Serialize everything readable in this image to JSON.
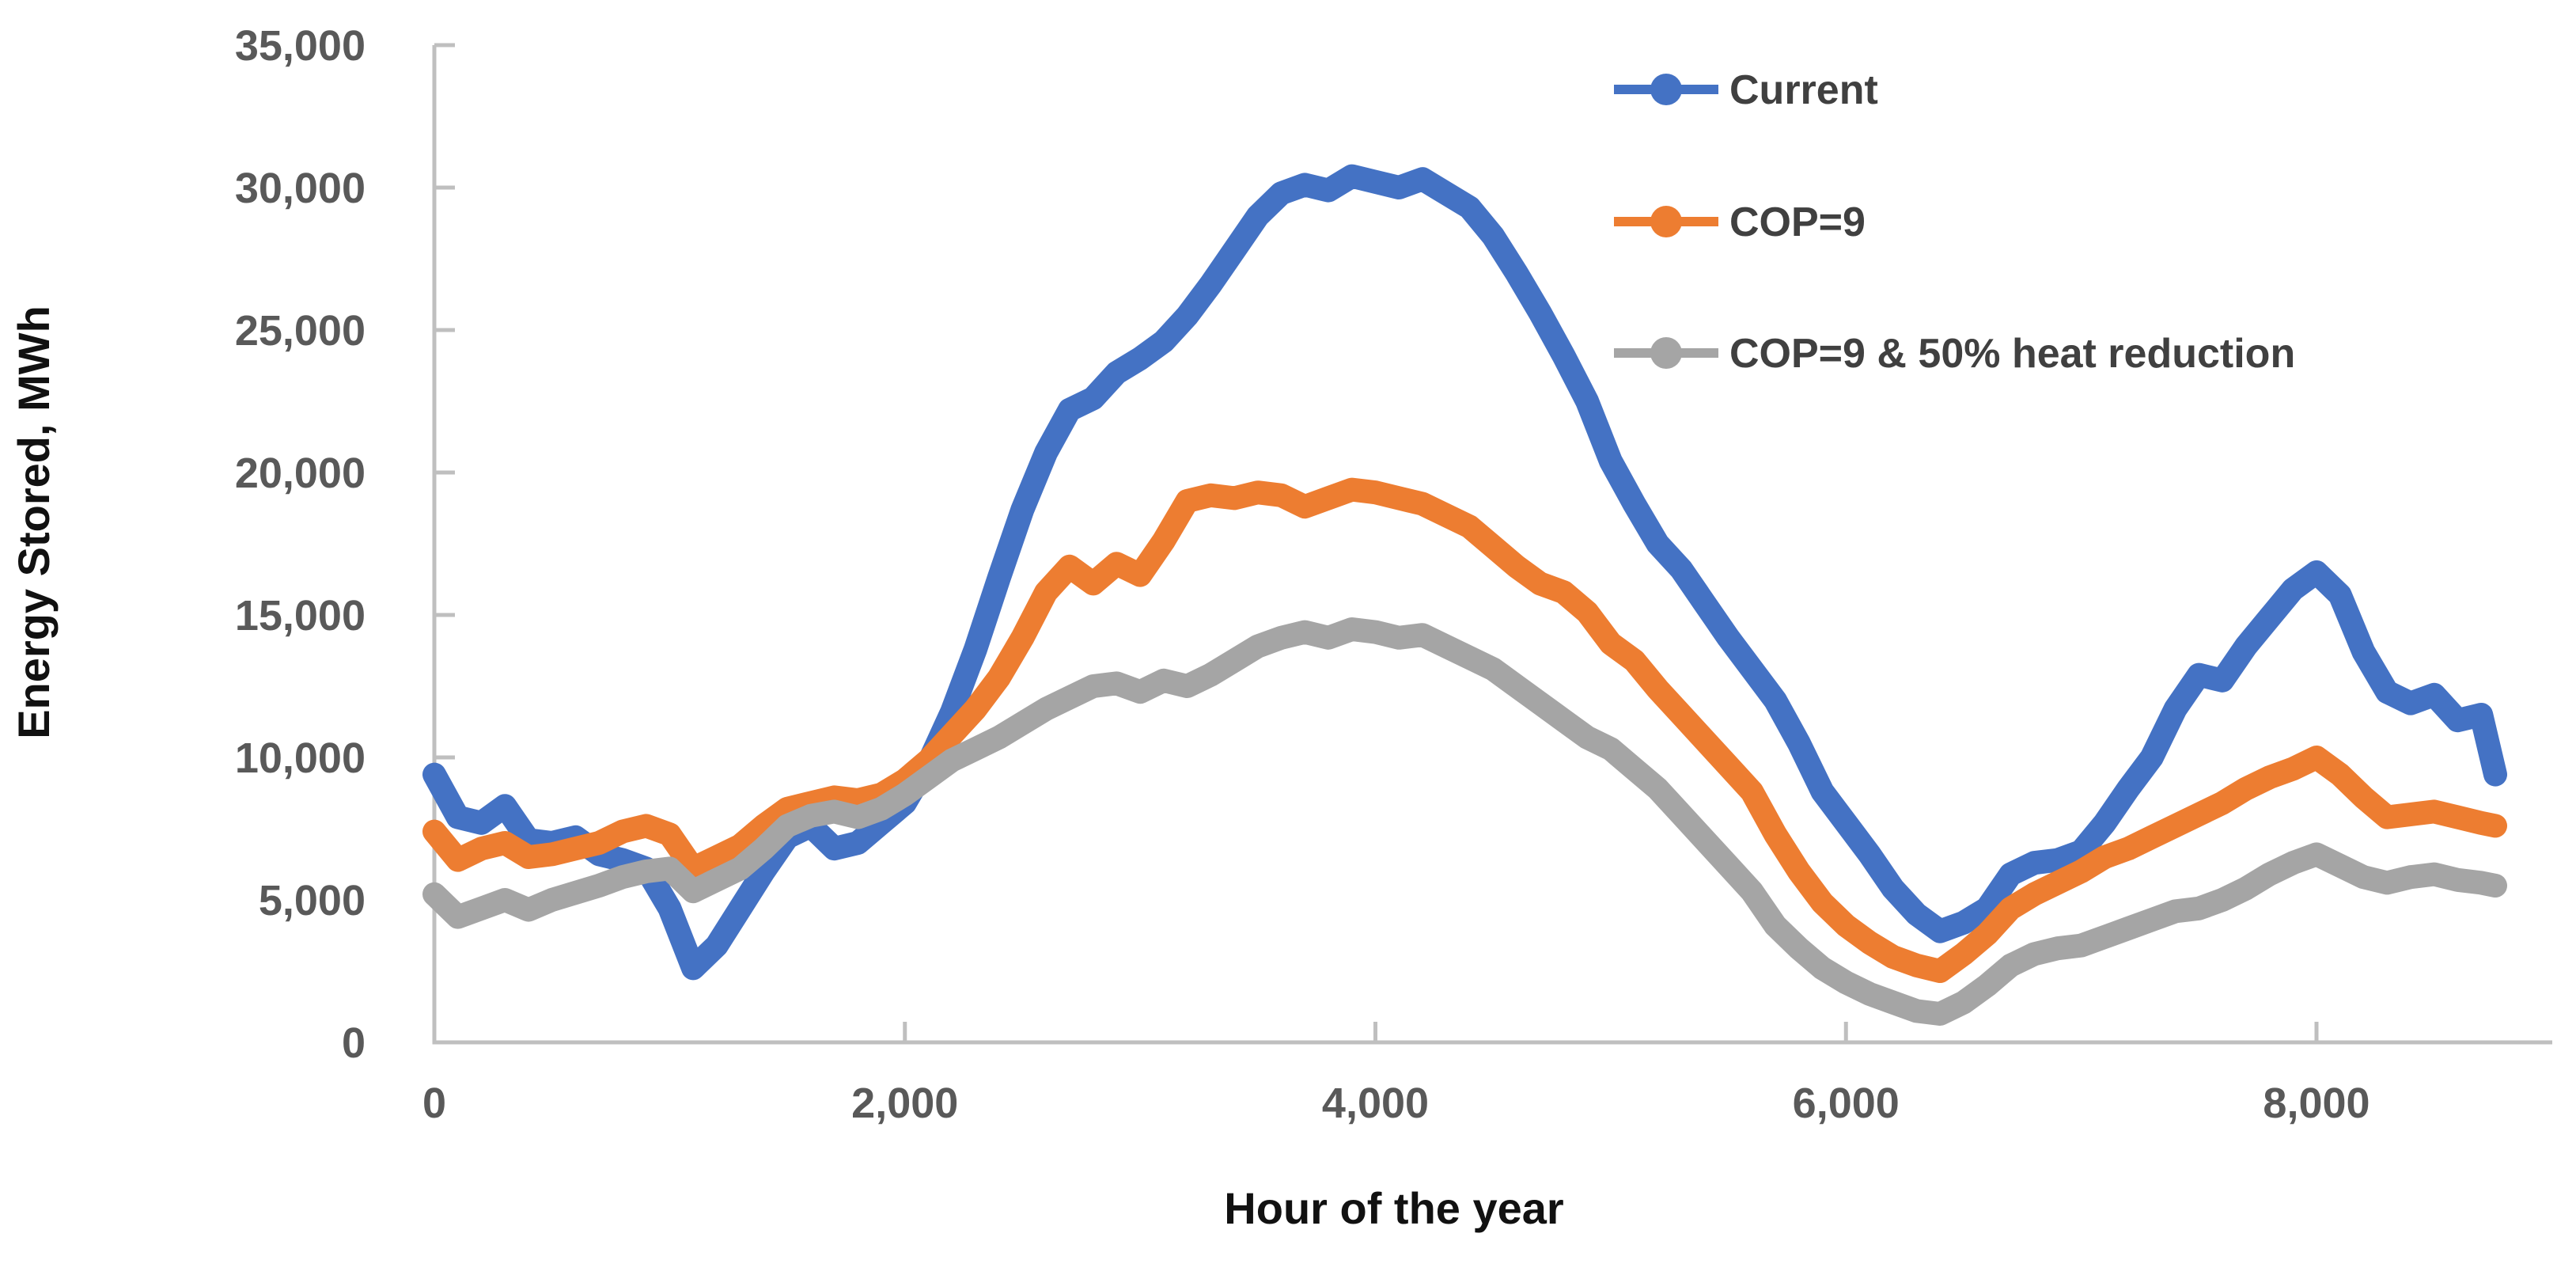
{
  "chart_data": {
    "type": "line",
    "title": "",
    "xlabel": "Hour of the year",
    "ylabel": "Energy Stored, MWh",
    "xlim": [
      0,
      9000
    ],
    "ylim": [
      0,
      35000
    ],
    "x_ticks": [
      0,
      2000,
      4000,
      6000,
      8000
    ],
    "y_ticks": [
      0,
      5000,
      10000,
      15000,
      20000,
      25000,
      30000,
      35000
    ],
    "grid": "off",
    "legend_position": "top-right",
    "axis_color": "#BFBFBF",
    "tick_label_color": "#595959",
    "x": [
      0,
      100,
      200,
      300,
      400,
      500,
      600,
      700,
      800,
      900,
      1000,
      1100,
      1200,
      1300,
      1400,
      1500,
      1600,
      1700,
      1800,
      1900,
      2000,
      2100,
      2200,
      2300,
      2400,
      2500,
      2600,
      2700,
      2800,
      2900,
      3000,
      3100,
      3200,
      3300,
      3400,
      3500,
      3600,
      3700,
      3800,
      3900,
      4000,
      4100,
      4200,
      4300,
      4400,
      4500,
      4600,
      4700,
      4800,
      4900,
      5000,
      5100,
      5200,
      5300,
      5400,
      5500,
      5600,
      5700,
      5800,
      5900,
      6000,
      6100,
      6200,
      6300,
      6400,
      6500,
      6600,
      6700,
      6800,
      6900,
      7000,
      7100,
      7200,
      7300,
      7400,
      7500,
      7600,
      7700,
      7800,
      7900,
      8000,
      8100,
      8200,
      8300,
      8400,
      8500,
      8600,
      8700,
      8760
    ],
    "series": [
      {
        "name": "Current",
        "color": "#4472C4",
        "values": [
          9400,
          7900,
          7700,
          8300,
          7100,
          7000,
          7200,
          6600,
          6400,
          6100,
          4700,
          2600,
          3400,
          4700,
          6000,
          7200,
          7600,
          6800,
          7000,
          7700,
          8400,
          9800,
          11600,
          13800,
          16300,
          18700,
          20700,
          22200,
          22600,
          23500,
          24000,
          24600,
          25500,
          26600,
          27800,
          29000,
          29800,
          30100,
          29900,
          30400,
          30200,
          30000,
          30300,
          29800,
          29300,
          28300,
          27000,
          25600,
          24100,
          22500,
          20400,
          18900,
          17500,
          16600,
          15400,
          14200,
          13100,
          12000,
          10500,
          8800,
          7700,
          6600,
          5400,
          4500,
          3900,
          4200,
          4700,
          5900,
          6300,
          6400,
          6700,
          7700,
          8900,
          10000,
          11700,
          12900,
          12700,
          13900,
          14900,
          15900,
          16500,
          15700,
          13700,
          12300,
          11900,
          12200,
          11300,
          11500,
          9400
        ]
      },
      {
        "name": "COP=9",
        "color": "#ED7D31",
        "values": [
          7400,
          6400,
          6800,
          7000,
          6500,
          6600,
          6800,
          7000,
          7400,
          7600,
          7300,
          6100,
          6500,
          6900,
          7600,
          8200,
          8400,
          8600,
          8500,
          8700,
          9200,
          9900,
          10800,
          11700,
          12800,
          14200,
          15800,
          16700,
          16100,
          16800,
          16400,
          17600,
          19000,
          19200,
          19100,
          19300,
          19200,
          18800,
          19100,
          19400,
          19300,
          19100,
          18900,
          18500,
          18100,
          17400,
          16700,
          16100,
          15800,
          15100,
          14000,
          13400,
          12400,
          11500,
          10600,
          9700,
          8800,
          7300,
          6000,
          4900,
          4100,
          3500,
          3000,
          2700,
          2500,
          3100,
          3800,
          4700,
          5200,
          5600,
          6000,
          6500,
          6800,
          7200,
          7600,
          8000,
          8400,
          8900,
          9300,
          9600,
          10000,
          9400,
          8600,
          7900,
          8000,
          8100,
          7900,
          7700,
          7600
        ]
      },
      {
        "name": "COP=9 & 50% heat reduction",
        "color": "#A5A5A5",
        "values": [
          5200,
          4400,
          4700,
          5000,
          4650,
          5000,
          5250,
          5500,
          5800,
          6000,
          6100,
          5300,
          5700,
          6100,
          6800,
          7600,
          7950,
          8100,
          7900,
          8200,
          8700,
          9300,
          9900,
          10300,
          10700,
          11200,
          11700,
          12100,
          12500,
          12600,
          12300,
          12700,
          12500,
          12900,
          13400,
          13900,
          14200,
          14400,
          14200,
          14500,
          14400,
          14200,
          14300,
          13900,
          13500,
          13100,
          12500,
          11900,
          11300,
          10700,
          10300,
          9600,
          8900,
          8000,
          7100,
          6200,
          5300,
          4100,
          3300,
          2600,
          2100,
          1700,
          1400,
          1100,
          1000,
          1400,
          2000,
          2700,
          3100,
          3300,
          3400,
          3700,
          4000,
          4300,
          4600,
          4700,
          5000,
          5400,
          5900,
          6300,
          6600,
          6200,
          5800,
          5600,
          5800,
          5900,
          5700,
          5600,
          5500
        ]
      }
    ]
  }
}
